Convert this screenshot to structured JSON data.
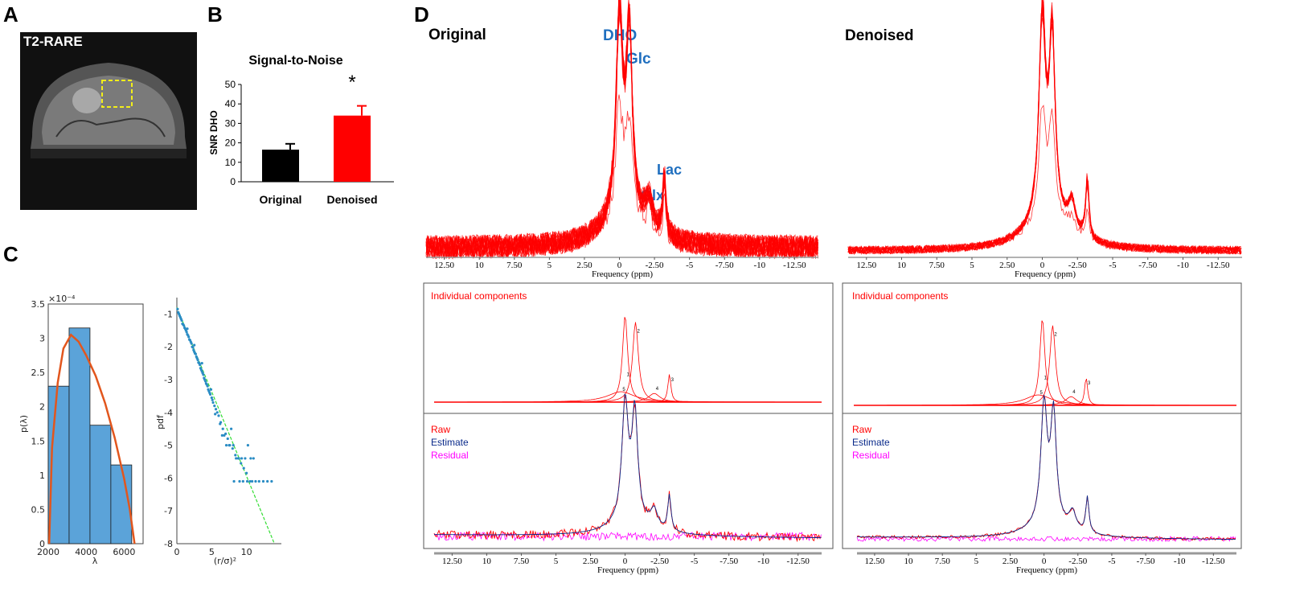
{
  "panels": {
    "A": "A",
    "B": "B",
    "C": "C",
    "D": "D"
  },
  "panelA": {
    "title": "T2-RARE"
  },
  "colors": {
    "red": "#ff0000",
    "blue_label": "#1f6fbf",
    "hist_fill": "#5ba3d9",
    "fit_curve": "#e2561d",
    "scatter": "#2a8cc4",
    "fit_line": "#33dd33",
    "estimate": "#0a2a8a",
    "residual": "#ff00ff"
  },
  "panelD": {
    "original_title": "Original",
    "denoised_title": "Denoised",
    "peak_labels": {
      "dho": "DHO",
      "glc": "Glc",
      "lac": "Lac",
      "glx": "Glx"
    },
    "x_ticks": [
      "12.50",
      "10",
      "7.50",
      "5",
      "2.50",
      "0",
      "-2.50",
      "-5",
      "-7.50",
      "-10",
      "-12.50"
    ],
    "xlabel": "Frequency (ppm)",
    "components_title": "Individual components",
    "component_numbers": [
      "1",
      "2",
      "3",
      "4",
      "5"
    ],
    "legend": {
      "raw": "Raw",
      "estimate": "Estimate",
      "residual": "Residual"
    }
  },
  "chart_data": [
    {
      "id": "snr-bar",
      "type": "bar",
      "title": "Signal-to-Noise",
      "categories": [
        "Original",
        "Denoised"
      ],
      "values": [
        16.5,
        34
      ],
      "errors": [
        3,
        5
      ],
      "colors": [
        "#000000",
        "#ff0000"
      ],
      "ylabel": "SNR DHO",
      "ylim": [
        0,
        50
      ],
      "yticks": [
        0,
        10,
        20,
        30,
        40,
        50
      ],
      "annotation": "*"
    },
    {
      "id": "eigen-hist",
      "type": "bar",
      "title": "",
      "xlabel": "λ",
      "ylabel": "p(λ)",
      "exponent": "×10⁻⁴",
      "bins": [
        [
          2000,
          3100
        ],
        [
          3100,
          4200
        ],
        [
          4200,
          5300
        ],
        [
          5300,
          6400
        ]
      ],
      "values": [
        2.3,
        3.15,
        1.73,
        1.15
      ],
      "xlim": [
        2000,
        7000
      ],
      "ylim": [
        0,
        3.5
      ],
      "xticks": [
        2000,
        4000,
        6000
      ],
      "yticks": [
        0,
        0.5,
        1,
        1.5,
        2,
        2.5,
        3,
        3.5
      ],
      "fit_curve": {
        "x": [
          2050,
          2200,
          2500,
          2800,
          3200,
          3600,
          4000,
          4500,
          5000,
          5500,
          6000,
          6300,
          6550
        ],
        "y": [
          0,
          1.4,
          2.35,
          2.85,
          3.05,
          2.95,
          2.75,
          2.45,
          2.05,
          1.55,
          0.95,
          0.5,
          0
        ]
      }
    },
    {
      "id": "pdf-scatter",
      "type": "scatter",
      "xlabel": "(r/σ)²",
      "ylabel": "pdf",
      "xlim": [
        0,
        15
      ],
      "ylim": [
        -8,
        -0.5
      ],
      "xticks": [
        0,
        5,
        10
      ],
      "yticks": [
        -1,
        -2,
        -3,
        -4,
        -5,
        -6,
        -7,
        -8
      ],
      "fit_line": {
        "x": [
          0,
          14
        ],
        "y": [
          -0.8,
          -8
        ]
      },
      "points": [
        [
          0.1,
          -0.85
        ],
        [
          0.2,
          -0.95
        ],
        [
          0.3,
          -1.0
        ],
        [
          0.4,
          -1.05
        ],
        [
          0.5,
          -1.1
        ],
        [
          0.6,
          -1.15
        ],
        [
          0.7,
          -1.2
        ],
        [
          0.8,
          -1.3
        ],
        [
          0.9,
          -1.32
        ],
        [
          1.0,
          -1.35
        ],
        [
          1.1,
          -1.42
        ],
        [
          1.2,
          -1.45
        ],
        [
          1.3,
          -1.5
        ],
        [
          1.4,
          -1.55
        ],
        [
          1.5,
          -1.62
        ],
        [
          1.6,
          -1.65
        ],
        [
          1.7,
          -1.7
        ],
        [
          1.8,
          -1.78
        ],
        [
          1.9,
          -1.8
        ],
        [
          2.0,
          -1.85
        ],
        [
          2.1,
          -1.9
        ],
        [
          2.2,
          -2.0
        ],
        [
          2.3,
          -2.02
        ],
        [
          2.4,
          -2.1
        ],
        [
          2.5,
          -2.15
        ],
        [
          2.6,
          -2.2
        ],
        [
          2.7,
          -2.22
        ],
        [
          2.8,
          -2.3
        ],
        [
          2.9,
          -2.35
        ],
        [
          3.0,
          -2.4
        ],
        [
          3.1,
          -2.48
        ],
        [
          3.2,
          -2.5
        ],
        [
          3.3,
          -2.55
        ],
        [
          3.4,
          -2.65
        ],
        [
          3.5,
          -2.7
        ],
        [
          3.6,
          -2.75
        ],
        [
          3.7,
          -2.8
        ],
        [
          3.8,
          -2.85
        ],
        [
          3.9,
          -2.95
        ],
        [
          4.0,
          -3.0
        ],
        [
          4.1,
          -3.05
        ],
        [
          4.2,
          -3.12
        ],
        [
          4.3,
          -3.15
        ],
        [
          4.4,
          -3.2
        ],
        [
          4.5,
          -3.3
        ],
        [
          4.6,
          -3.35
        ],
        [
          4.7,
          -3.4
        ],
        [
          4.8,
          -3.45
        ],
        [
          5.0,
          -3.55
        ],
        [
          5.2,
          -3.7
        ],
        [
          5.4,
          -3.8
        ],
        [
          5.6,
          -3.9
        ],
        [
          5.8,
          -4.0
        ],
        [
          6.0,
          -4.1
        ],
        [
          6.3,
          -4.3
        ],
        [
          6.6,
          -4.5
        ],
        [
          7.0,
          -4.65
        ],
        [
          7.3,
          -4.8
        ],
        [
          7.6,
          -5.0
        ],
        [
          8.0,
          -5.1
        ],
        [
          8.4,
          -5.3
        ],
        [
          8.8,
          -5.4
        ],
        [
          9.2,
          -5.55
        ],
        [
          9.6,
          -5.7
        ],
        [
          10.0,
          -5.85
        ],
        [
          10.5,
          -6.1
        ],
        [
          5.1,
          -3.62
        ],
        [
          5.5,
          -4.05
        ],
        [
          6.2,
          -4.35
        ],
        [
          6.5,
          -4.7
        ],
        [
          7.1,
          -5.0
        ],
        [
          7.5,
          -5.0
        ],
        [
          8.1,
          -5.0
        ],
        [
          8.5,
          -5.4
        ],
        [
          8.9,
          -5.4
        ],
        [
          9.3,
          -5.4
        ],
        [
          9.8,
          -5.4
        ],
        [
          10.2,
          -5.0
        ],
        [
          10.6,
          -5.4
        ],
        [
          11.0,
          -5.4
        ],
        [
          8.2,
          -6.1
        ],
        [
          9.0,
          -6.1
        ],
        [
          9.5,
          -6.1
        ],
        [
          10.1,
          -6.1
        ],
        [
          10.8,
          -6.1
        ],
        [
          11.3,
          -6.1
        ],
        [
          11.8,
          -6.1
        ],
        [
          12.4,
          -6.1
        ],
        [
          13.0,
          -6.1
        ],
        [
          13.6,
          -6.1
        ],
        [
          6.8,
          -4.7
        ],
        [
          7.8,
          -4.5
        ],
        [
          4.9,
          -3.3
        ],
        [
          3.6,
          -2.5
        ],
        [
          2.5,
          -1.95
        ],
        [
          1.5,
          -1.45
        ]
      ]
    }
  ]
}
